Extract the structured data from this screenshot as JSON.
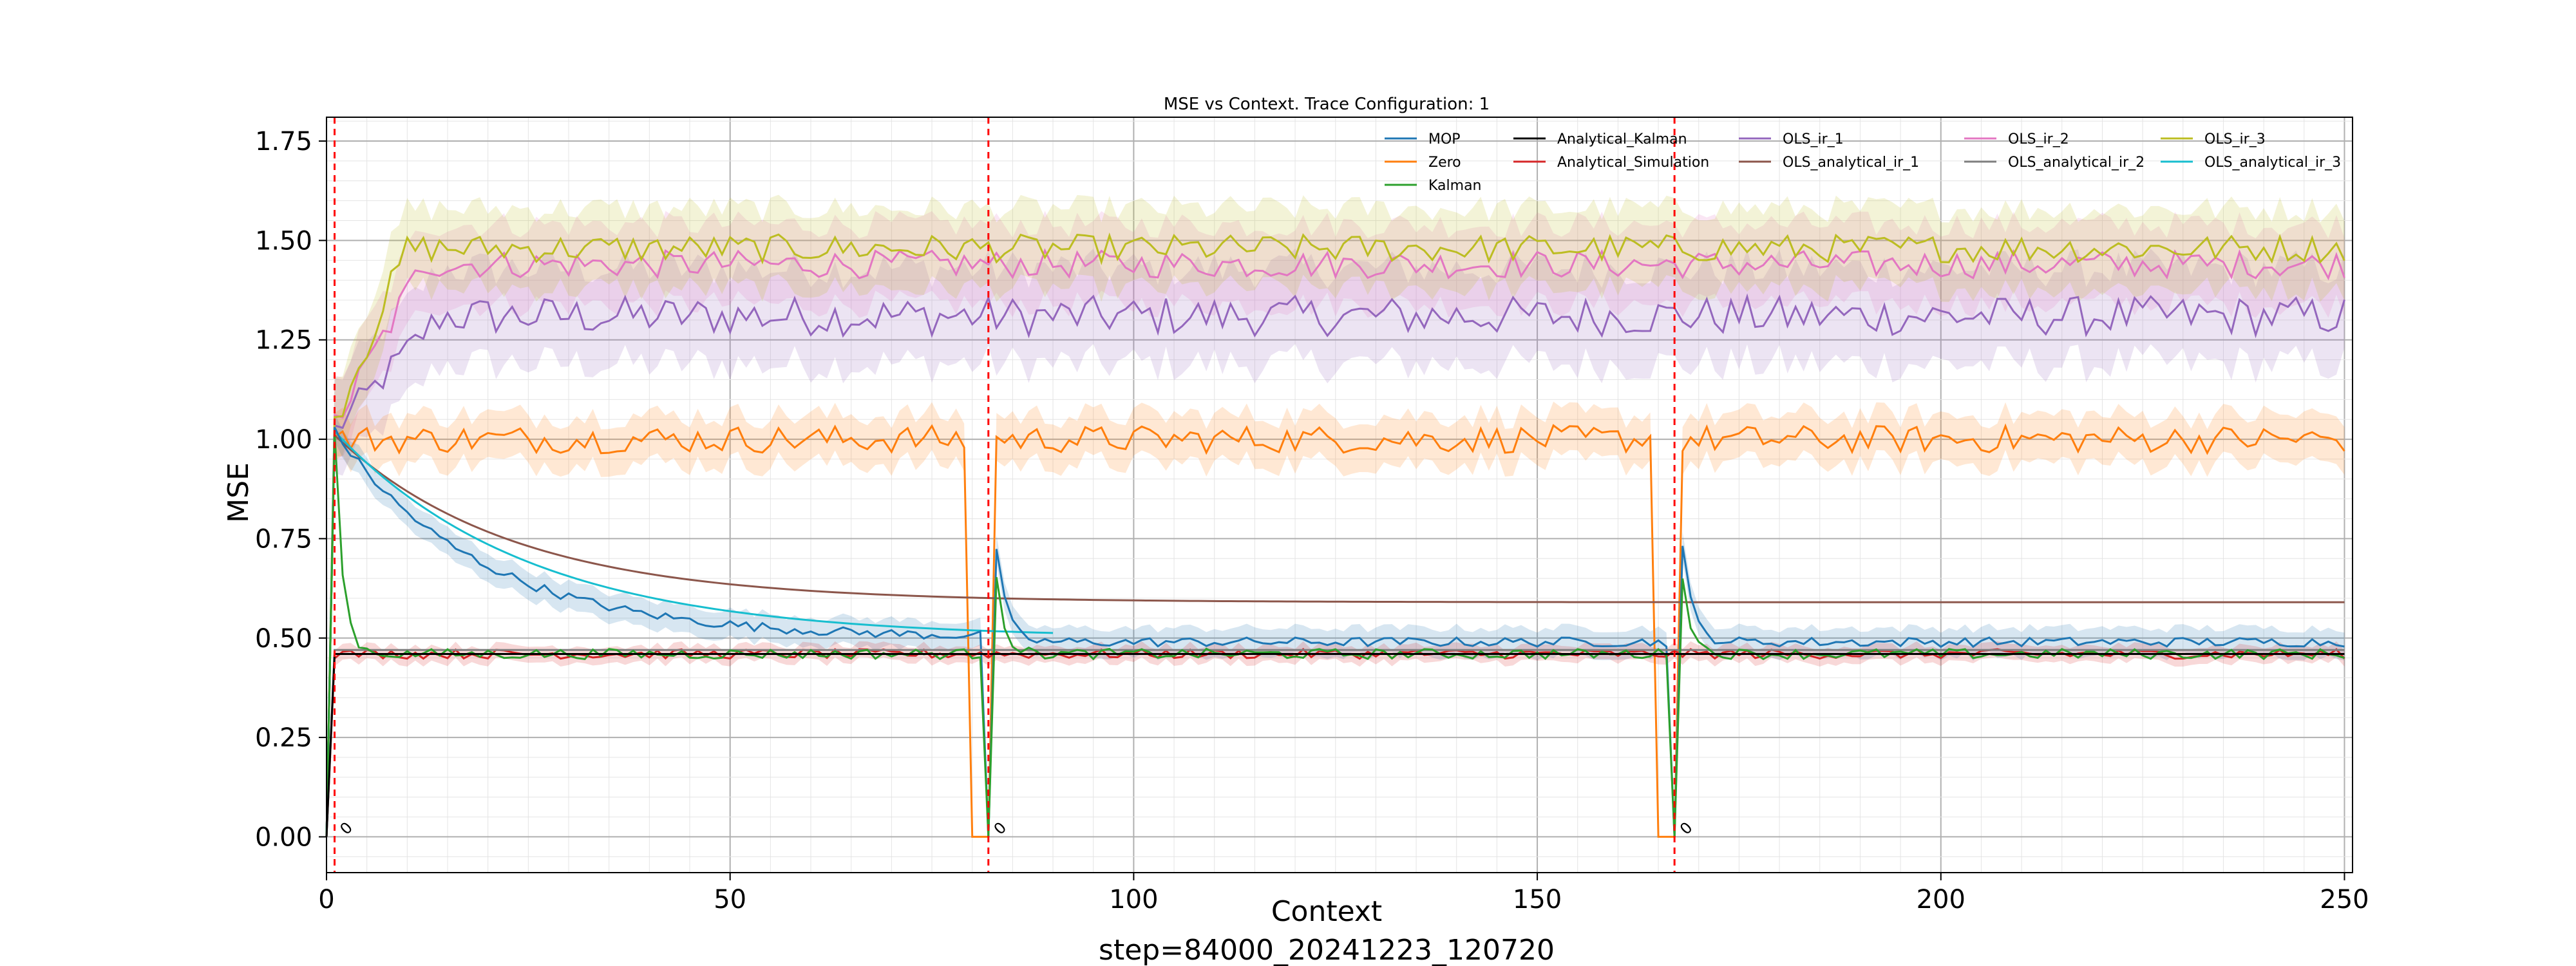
{
  "chart_data": {
    "type": "line",
    "title": "MSE vs Context. Trace Configuration: 1",
    "xlabel": "Context",
    "ylabel": "MSE",
    "footer": "step=84000_20241223_120720",
    "xlim": [
      0,
      251
    ],
    "ylim": [
      -0.09,
      1.81
    ],
    "xticks": [
      0,
      50,
      100,
      150,
      200,
      250
    ],
    "yticks": [
      0.0,
      0.25,
      0.5,
      0.75,
      1.0,
      1.25,
      1.5,
      1.75
    ],
    "ytick_labels": [
      "0.00",
      "0.25",
      "0.50",
      "0.75",
      "1.00",
      "1.25",
      "1.50",
      "1.75"
    ],
    "xtick_labels": [
      "0",
      "50",
      "100",
      "150",
      "200",
      "250"
    ],
    "grid": true,
    "minor_grid": true,
    "legend_position": "top-right",
    "reset_markers": [
      1,
      82,
      167
    ],
    "zero_annotations": [
      {
        "x": 2,
        "text": "0"
      },
      {
        "x": 83,
        "text": "0"
      },
      {
        "x": 168,
        "text": "0"
      }
    ],
    "series": [
      {
        "name": "MOP",
        "color": "#1f77b4",
        "band": true
      },
      {
        "name": "Zero",
        "color": "#ff7f0e",
        "band": true
      },
      {
        "name": "Kalman",
        "color": "#2ca02c",
        "band": false
      },
      {
        "name": "Analytical_Kalman",
        "color": "#000000",
        "band": false
      },
      {
        "name": "Analytical_Simulation",
        "color": "#d62728",
        "band": true
      },
      {
        "name": "OLS_ir_1",
        "color": "#9467bd",
        "band": true
      },
      {
        "name": "OLS_analytical_ir_1",
        "color": "#8c564b",
        "band": false
      },
      {
        "name": "OLS_ir_2",
        "color": "#e377c2",
        "band": true
      },
      {
        "name": "OLS_analytical_ir_2",
        "color": "#7f7f7f",
        "band": false
      },
      {
        "name": "OLS_ir_3",
        "color": "#bcbd22",
        "band": true
      },
      {
        "name": "OLS_analytical_ir_3",
        "color": "#17becf",
        "band": false
      }
    ],
    "approx_levels": {
      "MOP_start": 1.0,
      "MOP_at_80": 0.52,
      "MOP_later": 0.49,
      "Zero": 1.0,
      "Kalman": 0.46,
      "Analytical_Kalman": 0.46,
      "Analytical_Simulation": 0.46,
      "OLS_ir_1": 1.31,
      "OLS_analytical_ir_1_at_80": 0.62,
      "OLS_analytical_ir_1_at_250": 0.59,
      "OLS_ir_2": 1.44,
      "OLS_analytical_ir_2": 0.47,
      "OLS_ir_3": 1.48,
      "OLS_analytical_ir_3_at_80": 0.52
    }
  }
}
